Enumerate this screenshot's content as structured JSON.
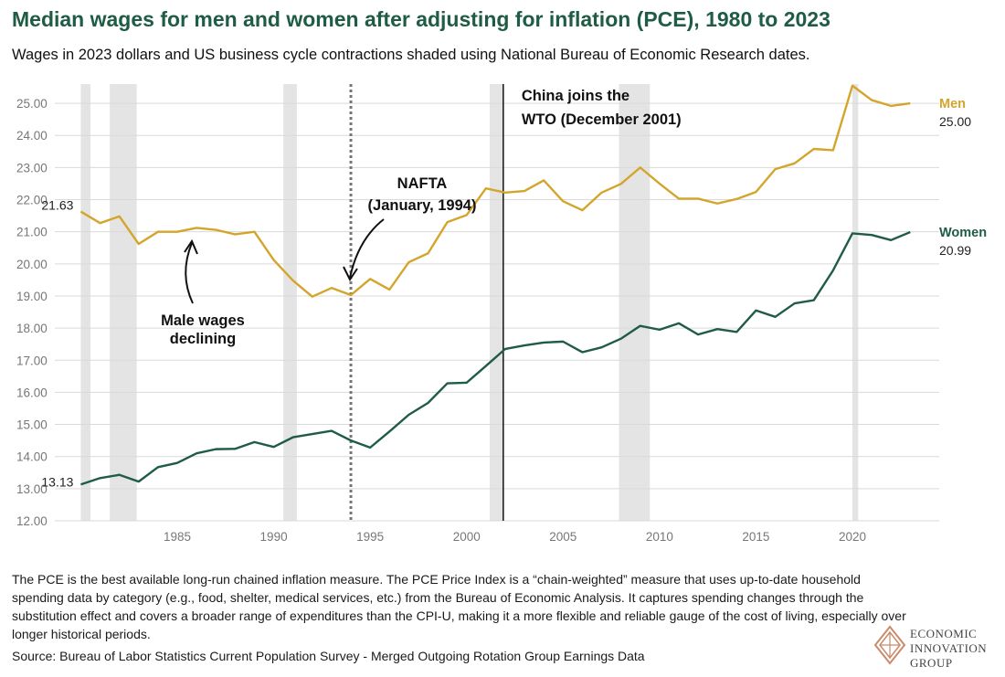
{
  "title": "Median wages for men and women after adjusting for inflation (PCE), 1980 to 2023",
  "subtitle": "Wages in 2023 dollars and US business cycle contractions shaded using National Bureau of Economic Research dates.",
  "note": "The PCE is the best available long-run chained inflation measure. The PCE Price Index is a “chain-weighted” measure that uses up-to-date household spending data by category (e.g., food, shelter, medical services, etc.) from the Bureau of Economic Analysis. It captures spending changes through the substitution effect and covers a broader range of expenditures than the CPI-U, making it a more flexible and reliable gauge of the cost of living, especially over longer historical periods.",
  "source": "Source: Bureau of Labor Statistics Current Population Survey - Merged Outgoing Rotation Group Earnings Data",
  "logo": {
    "line1": "ECONOMIC",
    "line2": "INNOVATION",
    "line3": "GROUP"
  },
  "colors": {
    "men": "#d4a52a",
    "women": "#1f5c45",
    "title": "#1f5c45",
    "recession": "#e4e4e4",
    "grid": "#d9d9d9"
  },
  "chart_data": {
    "type": "line",
    "x": [
      1980,
      1981,
      1982,
      1983,
      1984,
      1985,
      1986,
      1987,
      1988,
      1989,
      1990,
      1991,
      1992,
      1993,
      1994,
      1995,
      1996,
      1997,
      1998,
      1999,
      2000,
      2001,
      2002,
      2003,
      2004,
      2005,
      2006,
      2007,
      2008,
      2009,
      2010,
      2011,
      2012,
      2013,
      2014,
      2015,
      2016,
      2017,
      2018,
      2019,
      2020,
      2021,
      2022,
      2023
    ],
    "x_ticks": [
      "1985",
      "1990",
      "1995",
      "2000",
      "2005",
      "2010",
      "2015",
      "2020"
    ],
    "y_ticks": [
      "12.00",
      "13.00",
      "14.00",
      "15.00",
      "16.00",
      "17.00",
      "18.00",
      "19.00",
      "20.00",
      "21.00",
      "22.00",
      "23.00",
      "24.00",
      "25.00"
    ],
    "ylim": [
      12,
      25.6
    ],
    "xlim": [
      1979,
      2024.5
    ],
    "grid": "horizontal",
    "series": [
      {
        "name": "Men",
        "end_label": "25.00",
        "start_label": "21.63",
        "values": [
          21.63,
          21.27,
          21.48,
          20.62,
          21.0,
          21.0,
          21.12,
          21.06,
          20.92,
          21.0,
          20.12,
          19.48,
          18.98,
          19.25,
          19.03,
          19.53,
          19.2,
          20.05,
          20.33,
          21.3,
          21.52,
          22.35,
          22.22,
          22.27,
          22.6,
          21.95,
          21.67,
          22.22,
          22.49,
          23.0,
          22.5,
          22.03,
          22.03,
          21.88,
          22.02,
          22.24,
          22.95,
          23.13,
          23.58,
          23.54,
          25.55,
          25.1,
          24.92,
          25.0
        ]
      },
      {
        "name": "Women",
        "end_label": "20.99",
        "start_label": "13.13",
        "values": [
          13.13,
          13.33,
          13.43,
          13.22,
          13.67,
          13.8,
          14.1,
          14.23,
          14.24,
          14.45,
          14.3,
          14.6,
          14.7,
          14.8,
          14.5,
          14.28,
          14.78,
          15.3,
          15.67,
          16.28,
          16.3,
          16.82,
          17.35,
          17.46,
          17.55,
          17.58,
          17.25,
          17.4,
          17.67,
          18.07,
          17.95,
          18.15,
          17.8,
          17.97,
          17.88,
          18.55,
          18.35,
          18.77,
          18.87,
          19.8,
          20.95,
          20.9,
          20.74,
          20.99
        ]
      }
    ],
    "recessions": [
      [
        1980.0,
        1980.5
      ],
      [
        1981.5,
        1982.9
      ],
      [
        1990.5,
        1991.2
      ],
      [
        2001.2,
        2001.9
      ],
      [
        2007.9,
        2009.5
      ],
      [
        2020.0,
        2020.3
      ]
    ],
    "events": [
      {
        "year": 1994,
        "label_lines": [
          "NAFTA",
          "(January, 1994)"
        ],
        "style": "dotted"
      },
      {
        "year": 2001.9,
        "label_lines": [
          "China joins the",
          "WTO (December 2001)"
        ],
        "style": "solid"
      }
    ],
    "annotations": [
      {
        "label_lines": [
          "Male wages",
          "declining"
        ]
      }
    ]
  }
}
